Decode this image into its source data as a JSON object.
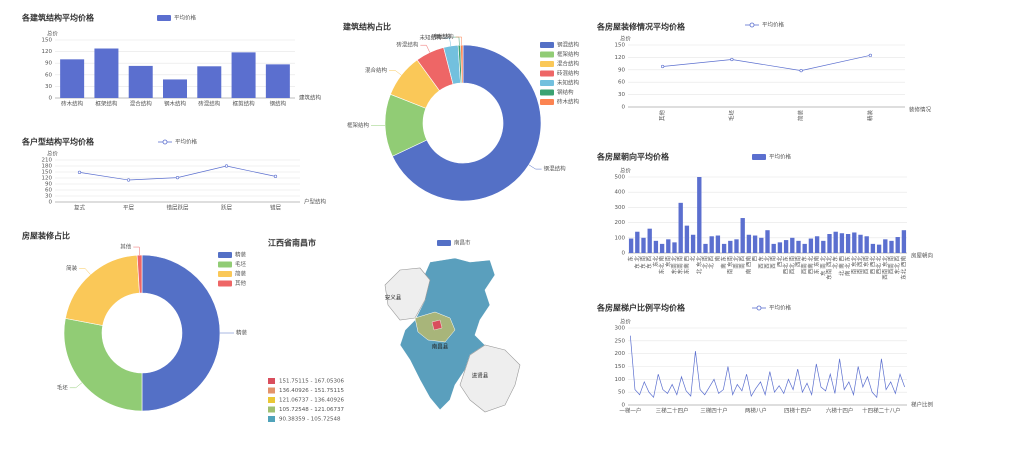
{
  "chart_data": [
    {
      "type": "bar",
      "title": "各建筑结构平均价格",
      "y_name": "总价",
      "x_name": "建筑结构",
      "categories": [
        "砖木结构",
        "框架结构",
        "混合结构",
        "钢木结构",
        "砖混结构",
        "框剪结构",
        "钢结构"
      ],
      "series": [
        {
          "name": "平均价格",
          "color": "#5b6fcf",
          "values": [
            100,
            128,
            83,
            48,
            82,
            118,
            87
          ]
        }
      ],
      "ylim": [
        0,
        150
      ],
      "yticks": [
        0,
        30,
        60,
        90,
        120,
        150
      ],
      "grid": true
    },
    {
      "type": "pie",
      "title": "建筑结构占比",
      "categories": [
        "钢混结构",
        "框架结构",
        "混合结构",
        "砖混结构",
        "未知结构",
        "钢结构",
        "砖木结构"
      ],
      "values": [
        68,
        13,
        9,
        6,
        3,
        0.5,
        0.5
      ],
      "colors": [
        "#5470c6",
        "#91cc75",
        "#fac858",
        "#ee6666",
        "#73c0de",
        "#3ba272",
        "#fc8452"
      ]
    },
    {
      "type": "line",
      "title": "各房屋装修情况平均价格",
      "y_name": "总价",
      "x_name": "装修情况",
      "categories": [
        "其他",
        "毛坯",
        "简装",
        "精装"
      ],
      "series": [
        {
          "name": "平均价格",
          "color": "#5b6fcf",
          "values": [
            98,
            115,
            88,
            125
          ]
        }
      ],
      "ylim": [
        0,
        150
      ],
      "yticks": [
        0,
        30,
        60,
        90,
        120,
        150
      ],
      "grid": true
    },
    {
      "type": "line",
      "title": "各户型结构平均价格",
      "y_name": "总价",
      "x_name": "户型结构",
      "categories": [
        "复式",
        "平层",
        "错层跃层",
        "跃层",
        "错层"
      ],
      "series": [
        {
          "name": "平均价格",
          "color": "#5b6fcf",
          "values": [
            148,
            110,
            122,
            180,
            128
          ]
        }
      ],
      "ylim": [
        0,
        210
      ],
      "yticks": [
        0,
        30,
        60,
        90,
        120,
        150,
        180,
        210
      ],
      "grid": true
    },
    {
      "type": "bar",
      "title": "各房屋朝向平均价格",
      "y_name": "总价",
      "x_name": "房屋朝向",
      "categories": [
        "东",
        "东 北",
        "东 南",
        "东 西",
        "东北",
        "东北 南",
        "东南",
        "东南 北",
        "东南 南",
        "东南 西",
        "北",
        "北 东北",
        "北 南",
        "北 西",
        "南",
        "南 东",
        "南 东南",
        "南 北",
        "南 西",
        "南 西南",
        "西",
        "西 东",
        "西 北",
        "西 南",
        "西北",
        "西北 东",
        "西北 南",
        "西南",
        "西南 东",
        "西南 北",
        "东 东南",
        "东 南 北",
        "东南 西北",
        "北 东",
        "北 南 西",
        "南 北 东",
        "南 东北",
        "南 西北",
        "西 东南",
        "西 西北",
        "西北 北",
        "西南 东北",
        "西南 南",
        "东北 西",
        "东北 西南"
      ],
      "series": [
        {
          "name": "平均价格",
          "color": "#5b6fcf",
          "values": [
            95,
            140,
            100,
            160,
            80,
            60,
            90,
            70,
            330,
            180,
            120,
            500,
            60,
            110,
            115,
            60,
            80,
            90,
            230,
            120,
            115,
            100,
            150,
            60,
            70,
            85,
            100,
            80,
            60,
            95,
            110,
            80,
            125,
            140,
            130,
            125,
            135,
            120,
            110,
            60,
            55,
            90,
            80,
            105,
            150
          ]
        }
      ],
      "ylim": [
        0,
        500
      ],
      "yticks": [
        0,
        100,
        200,
        300,
        400,
        500
      ],
      "grid": true
    },
    {
      "type": "pie",
      "title": "房屋装修占比",
      "categories": [
        "精装",
        "毛坯",
        "简装",
        "其他"
      ],
      "values": [
        50,
        28,
        21,
        1
      ],
      "colors": [
        "#5470c6",
        "#91cc75",
        "#fac858",
        "#ee6666"
      ]
    },
    {
      "type": "map",
      "title": "江西省南昌市",
      "legend": "南昌市",
      "legend_color": "#5470c6",
      "regions": [
        "安义县",
        "南昌县",
        "进贤县"
      ],
      "pieces": [
        {
          "label": "151.75115 - 167.05306",
          "color": "#d94e5d"
        },
        {
          "label": "136.40926 - 151.75115",
          "color": "#e3936b"
        },
        {
          "label": "121.06737 - 136.40926",
          "color": "#eac736"
        },
        {
          "label": "105.72548 - 121.06737",
          "color": "#a0c070"
        },
        {
          "label": "90.38359 - 105.72548",
          "color": "#50a3ba"
        }
      ]
    },
    {
      "type": "line",
      "title": "各房屋梯户比例平均价格",
      "y_name": "总价",
      "x_name": "梯户比例",
      "categories": [
        "一梯一户",
        null,
        null,
        null,
        null,
        null,
        null,
        null,
        null,
        "三梯二十四户",
        null,
        null,
        null,
        null,
        null,
        null,
        null,
        null,
        "三梯四十户",
        null,
        null,
        null,
        null,
        null,
        null,
        null,
        null,
        "两梯八户",
        null,
        null,
        null,
        null,
        null,
        null,
        null,
        null,
        "四梯十四户",
        null,
        null,
        null,
        null,
        null,
        null,
        null,
        null,
        "六梯十四户",
        null,
        null,
        null,
        null,
        null,
        null,
        null,
        null,
        "十四梯二十八户",
        null,
        null,
        null,
        null,
        null
      ],
      "series": [
        {
          "name": "平均价格",
          "color": "#5b6fcf",
          "values": [
            270,
            60,
            40,
            90,
            50,
            30,
            120,
            60,
            45,
            80,
            40,
            110,
            55,
            35,
            210,
            60,
            40,
            70,
            100,
            45,
            60,
            150,
            40,
            80,
            55,
            120,
            35,
            65,
            90,
            40,
            130,
            50,
            75,
            45,
            100,
            60,
            140,
            50,
            85,
            40,
            160,
            70,
            55,
            120,
            45,
            180,
            60,
            90,
            40,
            150,
            70,
            110,
            50,
            30,
            180,
            60,
            90,
            45,
            120,
            70
          ]
        }
      ],
      "ylim": [
        0,
        300
      ],
      "yticks": [
        0,
        50,
        100,
        150,
        200,
        250,
        300
      ],
      "grid": true
    }
  ]
}
